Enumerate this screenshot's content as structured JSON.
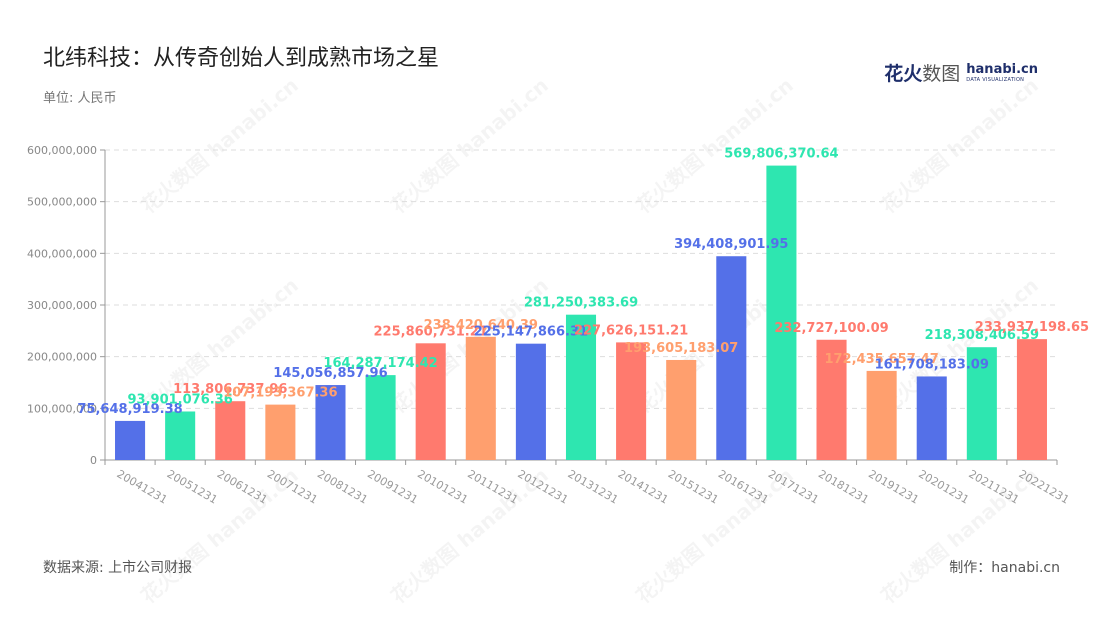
{
  "title": "北纬科技：从传奇创始人到成熟市场之星",
  "unit_label": "单位: 人民币",
  "source_label": "数据来源: 上市公司财报",
  "credit_label": "制作：hanabi.cn",
  "logo": {
    "cn_text": "花火",
    "cn_light": "数图",
    "en_text": "hanabi.cn",
    "en_sub": "DATA VISUALIZATION"
  },
  "watermark_text": "花火数图 hanabi.cn",
  "colors": {
    "palette": [
      "#5470e8",
      "#2ee6b0",
      "#ff7a6e",
      "#ff9f6e"
    ],
    "grid": "#dddddd",
    "axis": "#999999",
    "tick_text": "#888888",
    "category_text": "#999999"
  },
  "chart_data": {
    "type": "bar",
    "categories": [
      "20041231",
      "20051231",
      "20061231",
      "20071231",
      "20081231",
      "20091231",
      "20101231",
      "20111231",
      "20121231",
      "20131231",
      "20141231",
      "20151231",
      "20161231",
      "20171231",
      "20181231",
      "20191231",
      "20201231",
      "20211231",
      "20221231"
    ],
    "values": [
      75648919.38,
      93901076.36,
      113806737.96,
      107193367.36,
      145056857.96,
      164287174.42,
      225860731.21,
      238420640.39,
      225147866.31,
      281250383.69,
      227626151.21,
      193605183.07,
      394408901.95,
      569806370.64,
      232727100.09,
      172435657.47,
      161708183.09,
      218308406.59,
      233937198.65
    ],
    "value_labels": [
      "75,648,919.38",
      "93,901,076.36",
      "113,806,737.96",
      "107,193,367.36",
      "145,056,857.96",
      "164,287,174.42",
      "225,860,731.21",
      "238,420,640.39",
      "225,147,866.31",
      "281,250,383.69",
      "227,626,151.21",
      "193,605,183.07",
      "394,408,901.95",
      "569,806,370.64",
      "232,727,100.09",
      "172,435,657.47",
      "161,708,183.09",
      "218,308,406.59",
      "233,937,198.65"
    ],
    "y_ticks": [
      "0",
      "100,000,000",
      "200,000,000",
      "300,000,000",
      "400,000,000",
      "500,000,000",
      "600,000,000"
    ],
    "ylim": [
      0,
      600000000
    ],
    "grid": true
  }
}
